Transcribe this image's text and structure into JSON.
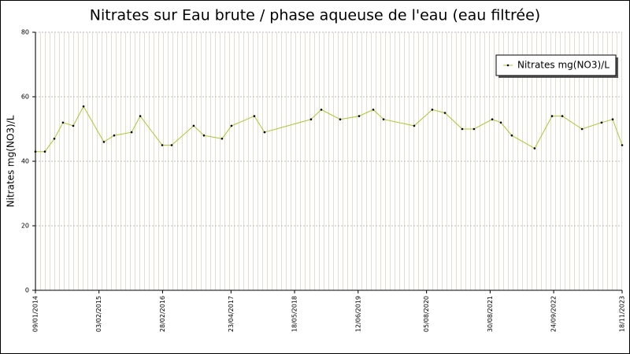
{
  "chart_data": {
    "type": "line",
    "title": "Nitrates sur Eau brute / phase aqueuse de l'eau (eau filtrée)",
    "y_label": "Nitrates mg(NO3)/L",
    "x": [
      "2014-01-09",
      "2014-03-08",
      "2014-05-05",
      "2014-06-27",
      "2014-08-29",
      "2014-10-31",
      "2015-03-05",
      "2015-05-07",
      "2015-08-22",
      "2015-10-14",
      "2016-02-26",
      "2016-04-24",
      "2016-09-06",
      "2016-11-08",
      "2017-02-27",
      "2017-04-26",
      "2017-09-13",
      "2017-11-15",
      "2018-08-27",
      "2018-10-29",
      "2019-02-22",
      "2019-06-18",
      "2019-09-13",
      "2019-11-15",
      "2020-05-21",
      "2020-09-09",
      "2020-11-26",
      "2021-03-12",
      "2021-05-23",
      "2021-09-12",
      "2021-11-04",
      "2022-01-10",
      "2022-05-30",
      "2022-09-14",
      "2022-11-16",
      "2023-03-17",
      "2023-07-15",
      "2023-09-21",
      "2023-11-18"
    ],
    "series": [
      {
        "name": "Nitrates mg(NO3)/L",
        "color": "#a8c832",
        "values": [
          43,
          43,
          47,
          52,
          51,
          57,
          46,
          48,
          49,
          54,
          45,
          45,
          51,
          48,
          47,
          51,
          54,
          49,
          53,
          56,
          53,
          54,
          56,
          53,
          51,
          56,
          55,
          50,
          50,
          53,
          52,
          48,
          44,
          54,
          54,
          50,
          52,
          53,
          45
        ]
      }
    ],
    "xlim": [
      "2014-01-09",
      "2023-11-18"
    ],
    "xticks": [
      {
        "value": "2014-01-09",
        "label": "09/01/2014"
      },
      {
        "value": "2015-02-03",
        "label": "03/02/2015"
      },
      {
        "value": "2016-02-28",
        "label": "28/02/2016"
      },
      {
        "value": "2017-04-23",
        "label": "23/04/2017"
      },
      {
        "value": "2018-05-18",
        "label": "18/05/2018"
      },
      {
        "value": "2019-06-12",
        "label": "12/06/2019"
      },
      {
        "value": "2020-08-05",
        "label": "05/08/2020"
      },
      {
        "value": "2021-08-30",
        "label": "30/08/2021"
      },
      {
        "value": "2022-09-24",
        "label": "24/09/2022"
      },
      {
        "value": "2023-11-18",
        "label": "18/11/2023"
      }
    ],
    "ylim": [
      0,
      80
    ],
    "yticks": [
      0,
      20,
      40,
      60,
      80
    ],
    "grid": true,
    "legend": "upper right"
  }
}
